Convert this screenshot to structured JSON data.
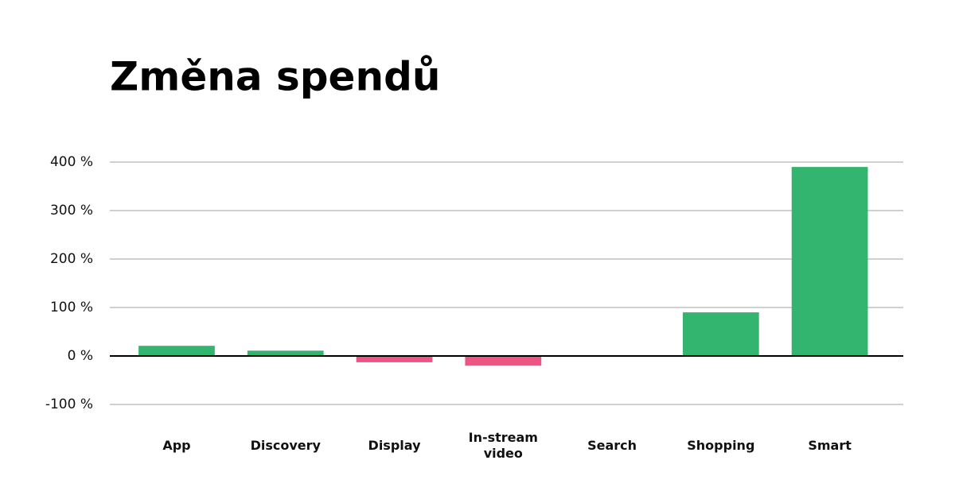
{
  "chart_data": {
    "type": "bar",
    "title": "Změna spendů",
    "categories": [
      "App",
      "Discovery",
      "Display",
      "In-stream video",
      "Search",
      "Shopping",
      "Smart"
    ],
    "values": [
      21,
      11,
      -13,
      -20,
      0,
      90,
      390
    ],
    "color_positive": "#34b56f",
    "color_negative": "#ee5582",
    "ylim": [
      -100,
      400
    ],
    "yticks": [
      {
        "value": -100,
        "label": "-100 %"
      },
      {
        "value": 0,
        "label": "0 %"
      },
      {
        "value": 100,
        "label": "100 %"
      },
      {
        "value": 200,
        "label": "200 %"
      },
      {
        "value": 300,
        "label": "300 %"
      },
      {
        "value": 400,
        "label": "400 %"
      }
    ],
    "grid": true
  }
}
